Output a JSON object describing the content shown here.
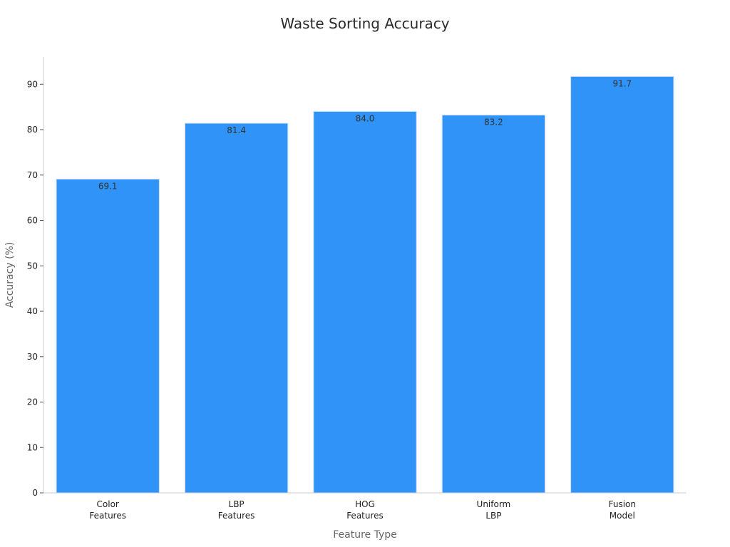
{
  "chart_data": {
    "type": "bar",
    "title": "Waste Sorting Accuracy",
    "xlabel": "Feature Type",
    "ylabel": "Accuracy (%)",
    "categories": [
      [
        "Color",
        "Features"
      ],
      [
        "LBP",
        "Features"
      ],
      [
        "HOG",
        "Features"
      ],
      [
        "Uniform",
        "LBP"
      ],
      [
        "Fusion",
        "Model"
      ]
    ],
    "values": [
      69.1,
      81.4,
      84.0,
      83.2,
      91.7
    ],
    "data_labels": [
      "69.1",
      "81.4",
      "84.0",
      "83.2",
      "91.7"
    ],
    "ylim": [
      0,
      96
    ],
    "yticks": [
      0,
      10,
      20,
      30,
      40,
      50,
      60,
      70,
      80,
      90
    ],
    "grid": false,
    "bar_color": "#2f93f8",
    "bar_edge_color": "#c9def5",
    "axis_color": "#cccccc"
  }
}
